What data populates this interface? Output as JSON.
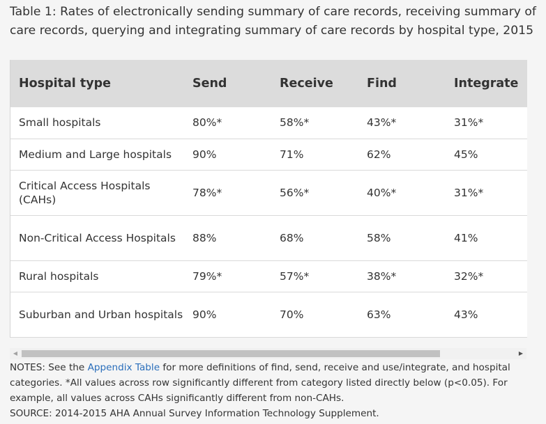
{
  "caption": "Table 1: Rates of electronically sending summary of care records, receiving summary of care records, querying and integrating summary of care records by hospital type, 2015",
  "table": {
    "headers": [
      "Hospital type",
      "Send",
      "Receive",
      "Find",
      "Integrate"
    ],
    "rows": [
      [
        "Small hospitals",
        "80%*",
        "58%*",
        "43%*",
        "31%*"
      ],
      [
        "Medium and Large hospitals",
        "90%",
        "71%",
        "62%",
        "45%"
      ],
      [
        "Critical Access Hospitals (CAHs)",
        "78%*",
        "56%*",
        "40%*",
        "31%*"
      ],
      [
        "Non-Critical Access Hospitals",
        "88%",
        "68%",
        "58%",
        "41%"
      ],
      [
        "Rural hospitals",
        "79%*",
        "57%*",
        "38%*",
        "32%*"
      ],
      [
        "Suburban and Urban hospitals",
        "90%",
        "70%",
        "63%",
        "43%"
      ]
    ]
  },
  "scrollbar": {
    "left_arrow": "◀",
    "right_arrow": "▶"
  },
  "notes": {
    "prefix": "NOTES: See the ",
    "link_text": "Appendix Table",
    "suffix": " for more definitions of find, send, receive and use/integrate, and hospital categories. *All values across row significantly different from category listed directly below (p<0.05). For example, all values across CAHs significantly different from non-CAHs.",
    "source": "SOURCE: 2014-2015 AHA Annual Survey Information Technology Supplement."
  }
}
